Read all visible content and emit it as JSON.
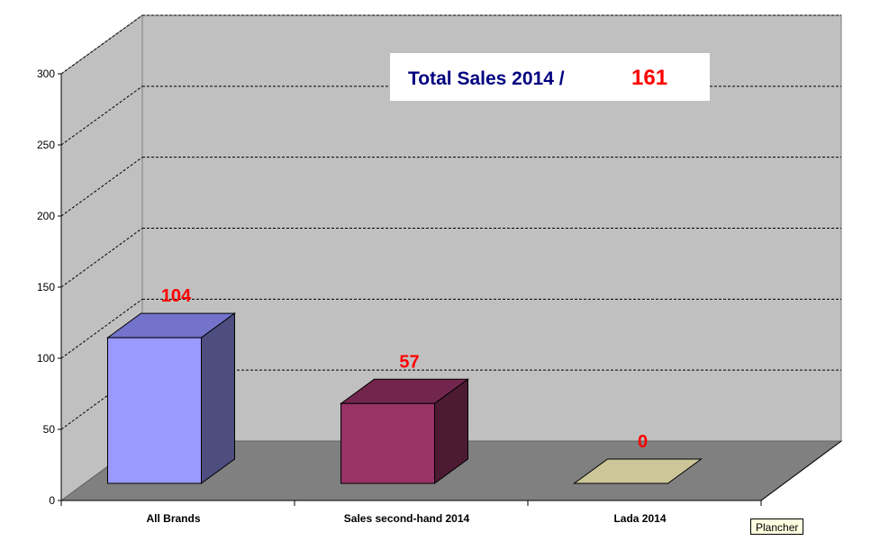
{
  "chart_data": {
    "type": "bar",
    "style": "3d",
    "categories": [
      "All Brands",
      "Sales second-hand 2014",
      "Lada 2014"
    ],
    "values": [
      104,
      57,
      0
    ],
    "data_labels": [
      "104",
      "57",
      "0"
    ],
    "ylim": [
      0,
      300
    ],
    "yticks": [
      "0",
      "50",
      "100",
      "150",
      "200",
      "250",
      "300"
    ],
    "grid": true,
    "legend": "none",
    "title": {
      "text": "Total Sales 2014 /",
      "value": "161"
    },
    "colors": {
      "bars": [
        {
          "front": "#9999ff",
          "top": "#7373cc",
          "side": "#4d4d80"
        },
        {
          "front": "#993366",
          "top": "#73264d",
          "side": "#4d1a33"
        },
        {
          "front": "#ccc699",
          "top": "#ccc699",
          "side": "#ccc699"
        }
      ],
      "walls": "#c0c0c0",
      "floor": "#808080",
      "label": "#ff0000",
      "title": "#000080"
    }
  },
  "tooltip": {
    "text": "Plancher"
  }
}
